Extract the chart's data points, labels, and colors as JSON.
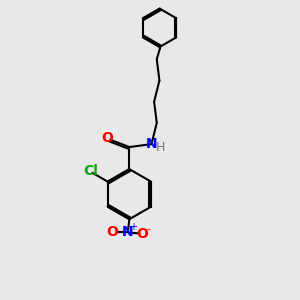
{
  "background_color": "#e8e8e8",
  "line_color": "#000000",
  "bond_width": 1.5,
  "label_O": "O",
  "label_N_amide": "N",
  "label_H": "H",
  "label_Cl": "Cl",
  "label_N_nitro": "N",
  "label_O_nitro1": "O",
  "label_O_nitro2": "O",
  "label_plus": "+",
  "label_minus": "-",
  "color_O": "#ff0000",
  "color_N": "#0000ff",
  "color_Cl": "#00aa00",
  "color_H": "#777777",
  "font_size_atoms": 10,
  "font_size_charge": 7,
  "figsize": [
    3.0,
    3.0
  ],
  "dpi": 100
}
